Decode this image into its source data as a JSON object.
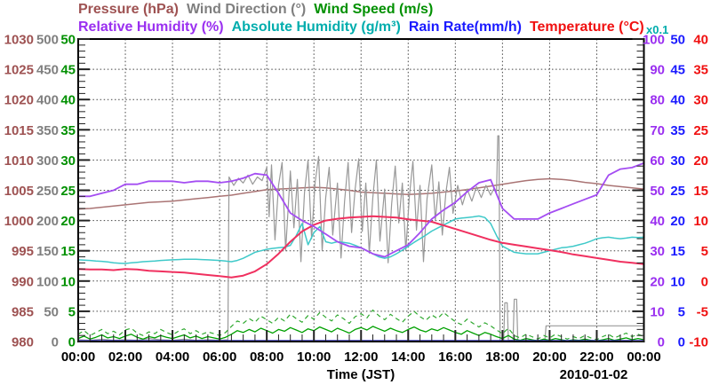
{
  "legend": {
    "row1": [
      {
        "key": "pressure",
        "label": "Pressure (hPa)",
        "color": "#9e5252"
      },
      {
        "key": "wind-direction",
        "label": "Wind Direction (°)",
        "color": "#7f7f7f"
      },
      {
        "key": "wind-speed",
        "label": "Wind Speed (m/s)",
        "color": "#009000"
      }
    ],
    "row2": [
      {
        "key": "relative-humidity",
        "label": "Relative Humidity (%)",
        "color": "#9a2ff0"
      },
      {
        "key": "absolute-humidity",
        "label": "Absolute Humidity (g/m³)",
        "color": "#00adad"
      },
      {
        "key": "rain-rate",
        "label": "Rain Rate(mm/h)",
        "color": "#1a1aff"
      },
      {
        "key": "temperature",
        "label": "Temperature (°C)",
        "color": "#f01010"
      }
    ],
    "note": {
      "label": "x0.1",
      "color": "#00adad"
    }
  },
  "chart_data": {
    "type": "line",
    "title": "",
    "grid": true,
    "x": {
      "title": "Time (JST)",
      "date_label": "2010-01-02",
      "min": 0,
      "max": 24,
      "major": 2,
      "minor_step": 0.5,
      "tick_labels": [
        "00:00",
        "02:00",
        "04:00",
        "06:00",
        "08:00",
        "10:00",
        "12:00",
        "14:00",
        "16:00",
        "18:00",
        "20:00",
        "22:00",
        "00:00"
      ]
    },
    "left_axes": [
      {
        "name": "pressure",
        "unit": "hPa",
        "color": "#9e5252",
        "min": 980,
        "max": 1030,
        "ticks": [
          "1030",
          "1025",
          "1020",
          "1015",
          "1010",
          "1005",
          "1000",
          "995",
          "990",
          "985",
          "980"
        ]
      },
      {
        "name": "wind-direction",
        "unit": "°",
        "color": "#7f7f7f",
        "min": 0,
        "max": 500,
        "ticks": [
          "500",
          "450",
          "400",
          "350",
          "300",
          "250",
          "200",
          "150",
          "100",
          "50",
          "0"
        ]
      },
      {
        "name": "wind-speed",
        "unit": "m/s",
        "color": "#009000",
        "min": 0,
        "max": 50,
        "ticks": [
          "50",
          "45",
          "40",
          "35",
          "30",
          "25",
          "20",
          "15",
          "10",
          "5",
          "0"
        ]
      }
    ],
    "right_axes": [
      {
        "name": "relative-humidity",
        "unit": "%",
        "color": "#9a2ff0",
        "min": 0,
        "max": 100,
        "ticks": [
          "100",
          "90",
          "80",
          "70",
          "60",
          "50",
          "40",
          "30",
          "20",
          "10",
          "0"
        ]
      },
      {
        "name": "rain-rate",
        "unit": "mm/h",
        "color": "#1a1aff",
        "min": 0,
        "max": 50,
        "ticks": [
          "50",
          "45",
          "40",
          "35",
          "30",
          "25",
          "20",
          "15",
          "10",
          "5",
          "0"
        ]
      },
      {
        "name": "temperature",
        "unit": "°C",
        "color": "#f01010",
        "min": -10,
        "max": 40,
        "ticks": [
          "40",
          "35",
          "30",
          "25",
          "20",
          "15",
          "10",
          "5",
          "0",
          "-5",
          "-10"
        ]
      }
    ],
    "series": [
      {
        "name": "pressure",
        "unit": "hPa",
        "color": "#aa7474",
        "width": 1.5,
        "scale": {
          "min": 980,
          "max": 1030
        },
        "start": 0,
        "step": 0.5,
        "values": [
          1001.9,
          1002.0,
          1002.2,
          1002.4,
          1002.6,
          1002.8,
          1003.0,
          1003.1,
          1003.2,
          1003.4,
          1003.6,
          1003.8,
          1004.0,
          1004.2,
          1004.5,
          1004.8,
          1005.1,
          1005.2,
          1005.3,
          1005.4,
          1005.5,
          1005.4,
          1005.2,
          1005.0,
          1004.7,
          1004.6,
          1004.5,
          1004.4,
          1004.3,
          1004.4,
          1004.5,
          1004.7,
          1004.9,
          1005.1,
          1005.4,
          1005.7,
          1006.0,
          1006.3,
          1006.6,
          1006.8,
          1006.9,
          1006.8,
          1006.6,
          1006.3,
          1006.1,
          1005.8,
          1005.6,
          1005.4,
          1005.2
        ]
      },
      {
        "name": "wind-direction",
        "unit": "°",
        "color": "#999999",
        "width": 1.2,
        "scale": {
          "min": 0,
          "max": 500
        },
        "points": [
          [
            0,
            3
          ],
          [
            0.5,
            2
          ],
          [
            1,
            4
          ],
          [
            1.5,
            2
          ],
          [
            2,
            3
          ],
          [
            2.5,
            2
          ],
          [
            3,
            5
          ],
          [
            3.5,
            3
          ],
          [
            4,
            2
          ],
          [
            4.5,
            4
          ],
          [
            5,
            2
          ],
          [
            5.5,
            3
          ],
          [
            6,
            2
          ],
          [
            6.35,
            3
          ],
          [
            6.4,
            272
          ],
          [
            6.6,
            258
          ],
          [
            6.8,
            270
          ],
          [
            7,
            262
          ],
          [
            7.2,
            275
          ],
          [
            7.4,
            260
          ],
          [
            7.6,
            272
          ],
          [
            7.8,
            266
          ],
          [
            8,
            288
          ],
          [
            8.1,
            206
          ],
          [
            8.2,
            292
          ],
          [
            8.35,
            168
          ],
          [
            8.5,
            258
          ],
          [
            8.65,
            296
          ],
          [
            8.8,
            150
          ],
          [
            9,
            282
          ],
          [
            9.15,
            188
          ],
          [
            9.3,
            268
          ],
          [
            9.45,
            132
          ],
          [
            9.6,
            246
          ],
          [
            9.75,
            300
          ],
          [
            9.9,
            170
          ],
          [
            10.05,
            262
          ],
          [
            10.2,
            306
          ],
          [
            10.35,
            150
          ],
          [
            10.5,
            238
          ],
          [
            10.65,
            288
          ],
          [
            10.8,
            176
          ],
          [
            11,
            262
          ],
          [
            11.15,
            138
          ],
          [
            11.3,
            232
          ],
          [
            11.45,
            296
          ],
          [
            11.6,
            180
          ],
          [
            11.75,
            252
          ],
          [
            11.9,
            302
          ],
          [
            12.05,
            182
          ],
          [
            12.2,
            262
          ],
          [
            12.35,
            146
          ],
          [
            12.5,
            238
          ],
          [
            12.65,
            300
          ],
          [
            12.8,
            166
          ],
          [
            13,
            252
          ],
          [
            13.15,
            130
          ],
          [
            13.3,
            228
          ],
          [
            13.45,
            290
          ],
          [
            13.6,
            196
          ],
          [
            13.75,
            262
          ],
          [
            13.9,
            150
          ],
          [
            14.05,
            240
          ],
          [
            14.2,
            298
          ],
          [
            14.35,
            184
          ],
          [
            14.5,
            258
          ],
          [
            14.65,
            132
          ],
          [
            14.8,
            236
          ],
          [
            15,
            292
          ],
          [
            15.15,
            200
          ],
          [
            15.3,
            264
          ],
          [
            15.45,
            176
          ],
          [
            15.6,
            246
          ],
          [
            15.75,
            288
          ],
          [
            15.9,
            212
          ],
          [
            16.1,
            258
          ],
          [
            16.3,
            226
          ],
          [
            16.5,
            252
          ],
          [
            16.7,
            232
          ],
          [
            16.9,
            256
          ],
          [
            17.1,
            238
          ],
          [
            17.3,
            258
          ],
          [
            17.5,
            242
          ],
          [
            17.65,
            254
          ],
          [
            17.75,
            248
          ],
          [
            17.8,
            340
          ],
          [
            17.85,
            340
          ],
          [
            17.9,
            2
          ],
          [
            18.05,
            2
          ],
          [
            18.1,
            64
          ],
          [
            18.2,
            64
          ],
          [
            18.25,
            2
          ],
          [
            18.45,
            2
          ],
          [
            18.5,
            70
          ],
          [
            18.6,
            70
          ],
          [
            18.65,
            2
          ],
          [
            19.8,
            2
          ],
          [
            19.85,
            26
          ],
          [
            24,
            26
          ]
        ]
      },
      {
        "name": "wind-speed-max",
        "unit": "m/s",
        "color": "#2fa82f",
        "width": 1.2,
        "dash": "5 4",
        "scale": {
          "min": 0,
          "max": 50
        },
        "start": 0,
        "step": 0.25,
        "values": [
          1.2,
          1.8,
          1.0,
          1.5,
          2.0,
          1.3,
          1.7,
          1.1,
          1.9,
          2.2,
          1.4,
          1.0,
          1.6,
          1.3,
          2.0,
          1.5,
          1.1,
          1.7,
          2.1,
          1.3,
          1.8,
          1.2,
          1.6,
          1.3,
          1.0,
          1.5,
          2.5,
          3.4,
          3.0,
          3.8,
          3.2,
          4.2,
          3.6,
          3.0,
          4.0,
          3.4,
          4.5,
          3.8,
          3.2,
          4.3,
          3.7,
          4.8,
          4.0,
          3.4,
          4.4,
          3.8,
          3.0,
          4.1,
          4.6,
          3.9,
          5.2,
          4.3,
          3.6,
          4.5,
          3.8,
          3.2,
          4.2,
          5.0,
          4.1,
          3.5,
          4.4,
          3.8,
          4.8,
          4.0,
          3.3,
          2.8,
          3.7,
          3.0,
          2.4,
          3.1,
          2.6,
          1.9,
          1.3,
          2.2,
          1.0,
          0.6,
          1.2,
          0.8,
          0.4,
          1.0,
          0.6,
          1.2,
          0.8,
          0.4,
          0.8,
          0.5,
          1.0,
          0.6,
          0.3,
          0.8,
          1.2,
          0.6,
          1.0,
          1.4,
          0.8,
          1.2,
          0.8
        ]
      },
      {
        "name": "wind-speed",
        "unit": "m/s",
        "color": "#00a000",
        "width": 1.3,
        "scale": {
          "min": 0,
          "max": 50
        },
        "start": 0,
        "step": 0.25,
        "values": [
          0.5,
          0.9,
          0.4,
          0.7,
          1.1,
          0.6,
          0.8,
          0.5,
          0.9,
          1.2,
          0.7,
          0.4,
          0.8,
          0.6,
          1.0,
          0.7,
          0.5,
          0.8,
          1.1,
          0.6,
          0.9,
          0.5,
          0.8,
          0.6,
          0.4,
          0.7,
          1.2,
          1.8,
          1.5,
          2.0,
          1.6,
          2.2,
          1.8,
          1.4,
          2.0,
          1.7,
          2.3,
          1.9,
          1.5,
          2.1,
          1.8,
          2.4,
          2.0,
          1.6,
          2.2,
          1.8,
          1.4,
          2.0,
          2.3,
          1.9,
          2.5,
          2.1,
          1.7,
          2.2,
          1.8,
          1.5,
          2.0,
          2.4,
          1.9,
          1.6,
          2.1,
          1.8,
          2.3,
          1.9,
          1.5,
          1.2,
          1.8,
          1.4,
          1.0,
          1.5,
          1.2,
          0.8,
          0.5,
          1.0,
          0.4,
          0.2,
          0.5,
          0.3,
          0.1,
          0.4,
          0.2,
          0.5,
          0.3,
          0.1,
          0.3,
          0.2,
          0.4,
          0.2,
          0.1,
          0.3,
          0.5,
          0.2,
          0.4,
          0.6,
          0.3,
          0.5,
          0.3
        ]
      },
      {
        "name": "rain-rate",
        "unit": "mm/h",
        "color": "#3a3ad0",
        "width": 2,
        "scale": {
          "min": 0,
          "max": 50
        },
        "points": [
          [
            0,
            0.12
          ],
          [
            24,
            0.12
          ]
        ]
      },
      {
        "name": "absolute-humidity",
        "unit": "g/m³",
        "color": "#3fc9c9",
        "width": 1.5,
        "scale": {
          "min": 0,
          "max": 10
        },
        "start": 0,
        "step": 0.25,
        "values": [
          2.7,
          2.69,
          2.68,
          2.66,
          2.65,
          2.63,
          2.6,
          2.59,
          2.58,
          2.6,
          2.62,
          2.64,
          2.65,
          2.66,
          2.68,
          2.69,
          2.7,
          2.71,
          2.72,
          2.72,
          2.72,
          2.71,
          2.7,
          2.69,
          2.68,
          2.66,
          2.64,
          2.68,
          2.75,
          2.85,
          2.95,
          3.0,
          3.05,
          3.08,
          3.1,
          3.12,
          3.18,
          3.5,
          3.9,
          3.2,
          3.6,
          3.8,
          3.3,
          3.25,
          3.3,
          3.28,
          3.25,
          3.18,
          3.1,
          3.0,
          2.9,
          2.8,
          2.75,
          2.8,
          2.9,
          3.02,
          3.15,
          3.28,
          3.4,
          3.52,
          3.65,
          3.75,
          3.85,
          3.95,
          4.05,
          4.08,
          4.1,
          4.12,
          4.15,
          4.1,
          3.9,
          3.5,
          3.15,
          3.05,
          2.95,
          2.92,
          2.9,
          2.9,
          2.9,
          2.95,
          3.0,
          3.05,
          3.1,
          3.12,
          3.15,
          3.2,
          3.25,
          3.32,
          3.4,
          3.43,
          3.45,
          3.42,
          3.4,
          3.42,
          3.45,
          3.44,
          3.45
        ]
      },
      {
        "name": "temperature",
        "unit": "°C",
        "color": "#f0305f",
        "width": 2,
        "scale": {
          "min": -10,
          "max": 40
        },
        "start": 0,
        "step": 0.5,
        "values": [
          2.0,
          1.9,
          1.9,
          1.8,
          2.0,
          1.9,
          1.7,
          1.6,
          1.5,
          1.4,
          1.2,
          1.0,
          0.8,
          0.6,
          0.9,
          1.6,
          2.8,
          4.5,
          6.5,
          8.2,
          9.3,
          10.0,
          10.3,
          10.5,
          10.6,
          10.7,
          10.6,
          10.5,
          10.2,
          10.0,
          9.8,
          9.2,
          8.6,
          8.0,
          7.4,
          6.8,
          6.3,
          6.0,
          5.7,
          5.4,
          5.1,
          4.8,
          4.4,
          4.1,
          3.8,
          3.5,
          3.2,
          3.0,
          2.8
        ]
      },
      {
        "name": "relative-humidity",
        "unit": "%",
        "color": "#a44df2",
        "width": 1.8,
        "scale": {
          "min": 0,
          "max": 100
        },
        "start": 0,
        "step": 0.5,
        "values": [
          48,
          48,
          49,
          50,
          52,
          52,
          53,
          53,
          53,
          52.5,
          53,
          53,
          52.5,
          53,
          54,
          55.5,
          55,
          49,
          42.5,
          40,
          38,
          35.5,
          33,
          31.5,
          31,
          29,
          28,
          30,
          32,
          36,
          40.5,
          43.5,
          46,
          49.5,
          52.5,
          53.5,
          44,
          40.5,
          40.5,
          40.5,
          42.5,
          44,
          45.5,
          47,
          48.5,
          55,
          57,
          57.5,
          59
        ]
      }
    ]
  }
}
